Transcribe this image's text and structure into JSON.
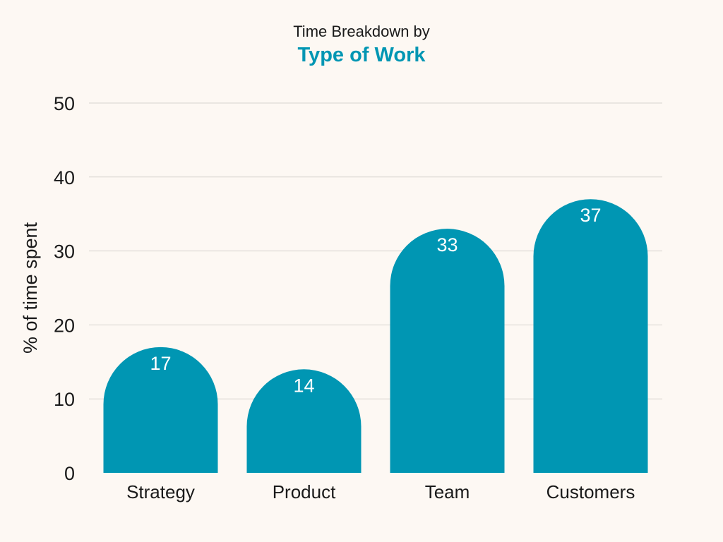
{
  "header": {
    "subtitle": "Time Breakdown by",
    "title": "Type of Work"
  },
  "chart_data": {
    "type": "bar",
    "subtitle": "Time Breakdown by",
    "title": "Type of Work",
    "categories": [
      "Strategy",
      "Product",
      "Team",
      "Customers"
    ],
    "values": [
      17,
      14,
      33,
      37
    ],
    "data_labels": [
      "17",
      "14",
      "33",
      "37"
    ],
    "xlabel": "",
    "ylabel": "% of time spent",
    "ylim": [
      0,
      50
    ],
    "yticks": [
      0,
      10,
      20,
      30,
      40,
      50
    ],
    "ytick_labels": [
      "0",
      "10",
      "20",
      "30",
      "40",
      "50"
    ],
    "grid": true,
    "legend": "none",
    "bar_shape": "rounded-top",
    "colors": {
      "bar": "#0096b3",
      "background": "#fdf8f3",
      "grid": "#d8d4cf",
      "axis_text": "#1a1a1a",
      "label_text": "#ffffff",
      "title": "#0096b3"
    }
  }
}
